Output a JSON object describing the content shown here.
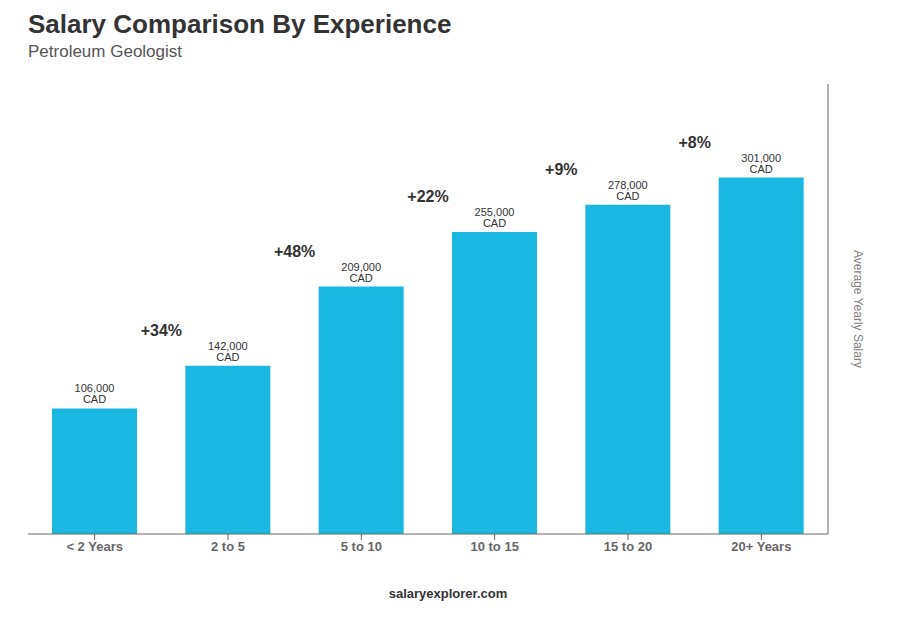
{
  "chart_data": {
    "type": "bar",
    "title": "Salary Comparison By Experience",
    "subtitle": "Petroleum Geologist",
    "ylabel": "Average Yearly Salary",
    "categories": [
      "< 2 Years",
      "2 to 5",
      "5 to 10",
      "10 to 15",
      "15 to 20",
      "20+ Years"
    ],
    "values": [
      106000,
      142000,
      209000,
      255000,
      278000,
      301000
    ],
    "value_labels": [
      "106,000 CAD",
      "142,000 CAD",
      "209,000 CAD",
      "255,000 CAD",
      "278,000 CAD",
      "301,000 CAD"
    ],
    "data_labels": true,
    "color": "#1ab8e0",
    "ylim": [
      0,
      380000
    ],
    "yticks": [],
    "tick_labels": "x",
    "annotations": [
      "+34%",
      "+48%",
      "+22%",
      "+9%",
      "+8%"
    ],
    "footer": [
      "salary",
      "explorer.com"
    ]
  }
}
